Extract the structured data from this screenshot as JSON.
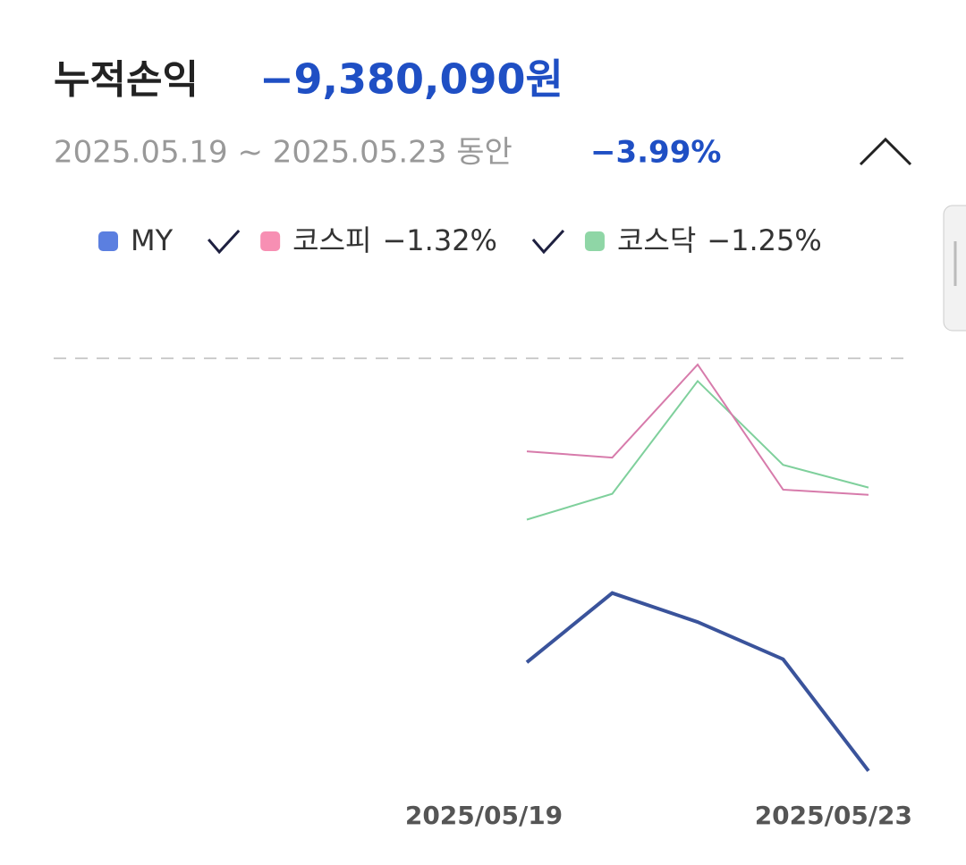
{
  "header": {
    "title": "누적손익",
    "amount": "−9,380,090원",
    "period": "2025.05.19 ~ 2025.05.23 동안",
    "rate": "−3.99%"
  },
  "chart_data": {
    "type": "line",
    "categories": [
      "2025/05/19",
      null,
      null,
      null,
      "2025/05/23"
    ],
    "series": [
      {
        "name": "MY",
        "color": "#3a539b",
        "swatch": "#5b7fe0",
        "values": [
          -2.94,
          -2.27,
          -2.55,
          -2.91,
          -3.99
        ]
      },
      {
        "name": "코스피",
        "color": "#d77bab",
        "swatch": "#f78fb3",
        "change": -1.32,
        "change_label": "−1.32%",
        "values": [
          -0.9,
          -0.96,
          -0.06,
          -1.27,
          -1.32
        ]
      },
      {
        "name": "코스닥",
        "color": "#7fd09c",
        "swatch": "#8fd6a6",
        "change": -1.25,
        "change_label": "−1.25%",
        "values": [
          -1.56,
          -1.31,
          -0.22,
          -1.03,
          -1.25
        ]
      }
    ],
    "ylim": [
      -4.2,
      0
    ],
    "yticks": [
      0
    ],
    "grid": true
  }
}
